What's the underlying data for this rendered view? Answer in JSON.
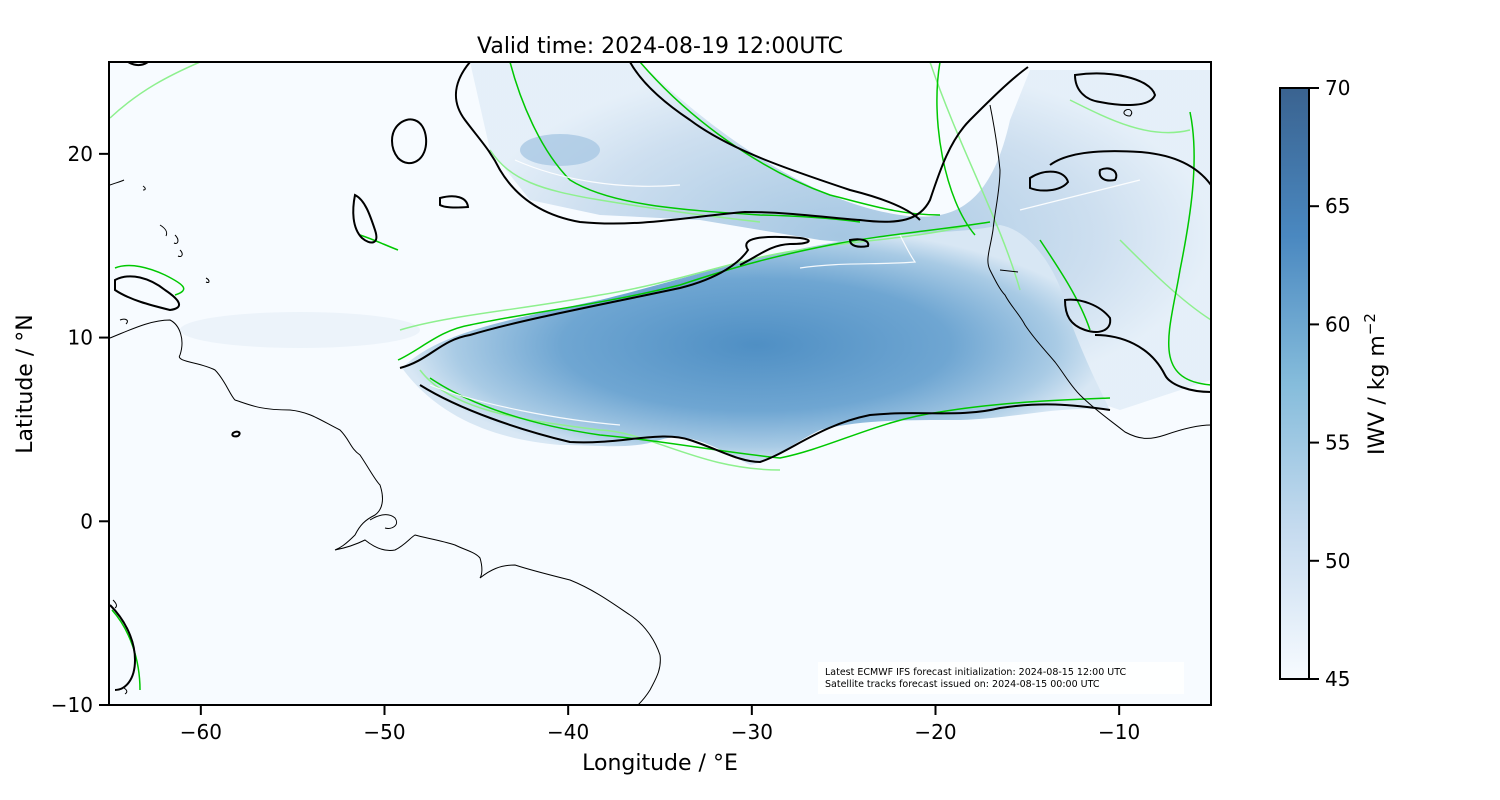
{
  "title": "Valid time: 2024-08-19 12:00UTC",
  "xlabel": "Longitude / °E",
  "ylabel": "Latitude / °N",
  "colorbar_label": "IWV / kg m",
  "colorbar_label_sup": "−2",
  "x_ticks": [
    {
      "value": -60,
      "label": "−60"
    },
    {
      "value": -50,
      "label": "−50"
    },
    {
      "value": -40,
      "label": "−40"
    },
    {
      "value": -30,
      "label": "−30"
    },
    {
      "value": -20,
      "label": "−20"
    },
    {
      "value": -10,
      "label": "−10"
    }
  ],
  "y_ticks": [
    {
      "value": 20,
      "label": "20"
    },
    {
      "value": 10,
      "label": "10"
    },
    {
      "value": 0,
      "label": "0"
    },
    {
      "value": -10,
      "label": "−10"
    }
  ],
  "colorbar_ticks": [
    {
      "value": 70,
      "label": "70"
    },
    {
      "value": 65,
      "label": "65"
    },
    {
      "value": 60,
      "label": "60"
    },
    {
      "value": 55,
      "label": "55"
    },
    {
      "value": 50,
      "label": "50"
    },
    {
      "value": 45,
      "label": "45"
    }
  ],
  "annotation": {
    "line1": "Latest ECMWF IFS forecast initialization: 2024-08-15 12:00 UTC",
    "line2": "Satellite tracks forecast issued on: 2024-08-15 00:00 UTC"
  },
  "colors": {
    "colormap_low": "#f7fbff",
    "colormap_mid": "#6baed6",
    "colormap_high": "#3a6390",
    "contour_black": "#000000",
    "contour_green": "#00c800",
    "contour_lightgreen": "#90ee90",
    "coastline": "#000000"
  },
  "chart_data": {
    "type": "heatmap",
    "title": "Valid time: 2024-08-19 12:00UTC",
    "xlabel": "Longitude / °E",
    "ylabel": "Latitude / °N",
    "xlim": [
      -65,
      -5
    ],
    "ylim": [
      -10,
      25
    ],
    "colorbar": {
      "label": "IWV / kg m−2",
      "range": [
        45,
        70
      ]
    },
    "moist_band": {
      "description_value": "IWV up to ~62–65 kg m−2",
      "core_longitudes": [
        -45,
        -15
      ],
      "core_latitudes": [
        5,
        15
      ]
    }
  }
}
